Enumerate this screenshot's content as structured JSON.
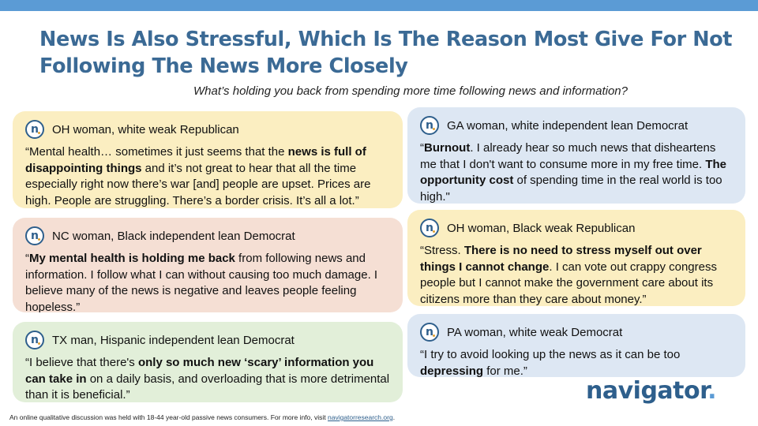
{
  "title": "News Is Also Stressful, Which Is The Reason Most Give For Not Following The News More Closely",
  "subtitle": "What’s holding you back from spending more time following news and information?",
  "cards": [
    {
      "speaker": "OH woman, white weak Republican",
      "quote": [
        "“Mental health… sometimes it just seems that the ",
        "news is full of disappointing things",
        " and it’s not great to hear that all the time especially right now there’s war [and] people are upset. Prices are high. People are struggling. There’s a border crisis. It’s all a lot.”"
      ]
    },
    {
      "speaker": "NC woman, Black independent lean Democrat",
      "quote": [
        "“",
        "My mental health is holding me back",
        " from following news and information. I follow what I can without causing too much damage. I believe many of the news is negative and leaves people feeling hopeless.”"
      ]
    },
    {
      "speaker": "TX man, Hispanic independent lean Democrat",
      "quote": [
        "“I believe that there's ",
        "only so much new ‘scary’ information you can take in",
        " on a daily basis, and overloading that is more detrimental than it is beneficial.”"
      ]
    },
    {
      "speaker": "GA woman, white independent lean Democrat",
      "quote": [
        "“",
        "Burnout",
        ". I already hear so much news that disheartens me that I don't want to consume more in my free time. ",
        "The opportunity cost",
        " of spending time in the real world is too high.\""
      ]
    },
    {
      "speaker": "OH woman, Black weak Republican",
      "quote": [
        "“Stress. ",
        "There is no need to stress myself out over things I cannot change",
        ". I can vote out crappy congress people but I cannot make the government care about its citizens more than they care about money.”"
      ]
    },
    {
      "speaker": "PA woman, white weak Democrat",
      "quote": [
        "“I try to avoid looking up the news as it can be too ",
        "depressing",
        " for me.”"
      ]
    }
  ],
  "logo_letter": "n",
  "brand": {
    "name": "navigator",
    "dot": "."
  },
  "footer": {
    "text": "An online qualitative discussion was held with 18-44 year-old passive news consumers. For more info, visit ",
    "link": "navigatorresearch.org",
    "end": "."
  },
  "colors": {
    "accent_bar": "#5b9bd5",
    "title": "#3b6a95",
    "yellow_card": "#fbeec1",
    "peach_card": "#f5dfd4",
    "green_card": "#e2efd9",
    "blue_card": "#dde7f3"
  }
}
